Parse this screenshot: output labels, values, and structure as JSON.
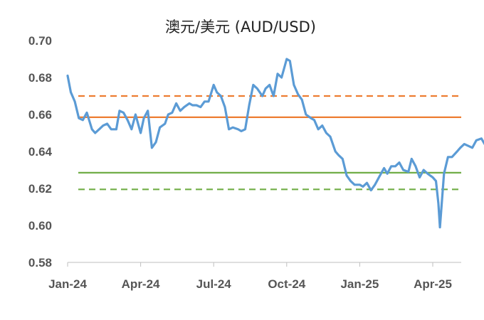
{
  "chart_data": {
    "type": "line",
    "title": "澳元/美元  (AUD/USD)",
    "xlabel": "",
    "ylabel": "",
    "ylim": [
      0.58,
      0.7
    ],
    "yticks": [
      "0.70",
      "0.68",
      "0.66",
      "0.64",
      "0.62",
      "0.60",
      "0.58"
    ],
    "yticks_values": [
      0.7,
      0.68,
      0.66,
      0.64,
      0.62,
      0.6,
      0.58
    ],
    "xticks": [
      "Jan-24",
      "Apr-24",
      "Jul-24",
      "Oct-24",
      "Jan-25",
      "Apr-25"
    ],
    "xticks_months": [
      0,
      3,
      6,
      9,
      12,
      15
    ],
    "xlim_months": [
      0,
      17.8
    ],
    "grid": false,
    "legend": "none",
    "series": [
      {
        "color": "#5B9BD5",
        "x": [
          "2024-01-01",
          "2024-01-05",
          "2024-01-10",
          "2024-01-15",
          "2024-01-20",
          "2024-01-25",
          "2024-02-01",
          "2024-02-05",
          "2024-02-10",
          "2024-02-15",
          "2024-02-20",
          "2024-02-25",
          "2024-03-01",
          "2024-03-05",
          "2024-03-10",
          "2024-03-15",
          "2024-03-20",
          "2024-03-25",
          "2024-04-01",
          "2024-04-05",
          "2024-04-10",
          "2024-04-15",
          "2024-04-20",
          "2024-04-25",
          "2024-05-01",
          "2024-05-05",
          "2024-05-10",
          "2024-05-15",
          "2024-05-20",
          "2024-05-25",
          "2024-06-01",
          "2024-06-05",
          "2024-06-10",
          "2024-06-15",
          "2024-06-20",
          "2024-06-25",
          "2024-07-01",
          "2024-07-05",
          "2024-07-10",
          "2024-07-15",
          "2024-07-20",
          "2024-07-25",
          "2024-08-01",
          "2024-08-05",
          "2024-08-10",
          "2024-08-15",
          "2024-08-20",
          "2024-08-25",
          "2024-09-01",
          "2024-09-05",
          "2024-09-10",
          "2024-09-15",
          "2024-09-20",
          "2024-09-25",
          "2024-10-01",
          "2024-10-05",
          "2024-10-10",
          "2024-10-15",
          "2024-10-20",
          "2024-10-25",
          "2024-11-01",
          "2024-11-05",
          "2024-11-10",
          "2024-11-15",
          "2024-11-20",
          "2024-11-25",
          "2024-12-01",
          "2024-12-05",
          "2024-12-10",
          "2024-12-15",
          "2024-12-20",
          "2024-12-25",
          "2025-01-01",
          "2025-01-05",
          "2025-01-10",
          "2025-01-15",
          "2025-01-20",
          "2025-01-25",
          "2025-02-01",
          "2025-02-05",
          "2025-02-10",
          "2025-02-15",
          "2025-02-20",
          "2025-02-25",
          "2025-03-01",
          "2025-03-05",
          "2025-03-10",
          "2025-03-15",
          "2025-03-20",
          "2025-03-25",
          "2025-04-01",
          "2025-04-05",
          "2025-04-08",
          "2025-04-10",
          "2025-04-15",
          "2025-04-20",
          "2025-04-25",
          "2025-05-01",
          "2025-05-05",
          "2025-05-10",
          "2025-05-15",
          "2025-05-20",
          "2025-05-25",
          "2025-06-01",
          "2025-06-05",
          "2025-06-10",
          "2025-06-15",
          "2025-06-20",
          "2025-06-25"
        ],
        "values": [
          0.681,
          0.672,
          0.667,
          0.658,
          0.657,
          0.661,
          0.652,
          0.65,
          0.652,
          0.654,
          0.655,
          0.652,
          0.652,
          0.662,
          0.661,
          0.657,
          0.652,
          0.66,
          0.65,
          0.658,
          0.662,
          0.642,
          0.645,
          0.653,
          0.655,
          0.66,
          0.661,
          0.666,
          0.662,
          0.664,
          0.666,
          0.665,
          0.665,
          0.664,
          0.667,
          0.667,
          0.676,
          0.672,
          0.67,
          0.664,
          0.652,
          0.653,
          0.652,
          0.651,
          0.652,
          0.665,
          0.676,
          0.674,
          0.67,
          0.674,
          0.676,
          0.67,
          0.682,
          0.68,
          0.69,
          0.689,
          0.676,
          0.671,
          0.668,
          0.66,
          0.658,
          0.657,
          0.652,
          0.654,
          0.65,
          0.648,
          0.64,
          0.638,
          0.636,
          0.627,
          0.624,
          0.622,
          0.622,
          0.621,
          0.623,
          0.619,
          0.622,
          0.626,
          0.631,
          0.628,
          0.632,
          0.632,
          0.634,
          0.63,
          0.629,
          0.636,
          0.632,
          0.626,
          0.63,
          0.628,
          0.626,
          0.624,
          0.612,
          0.599,
          0.628,
          0.637,
          0.637,
          0.64,
          0.642,
          0.644,
          0.643,
          0.642,
          0.646,
          0.647,
          0.644,
          0.646,
          0.648,
          0.646,
          0.645
        ]
      }
    ],
    "reference_lines": [
      {
        "value": 0.67,
        "color": "#ED7D31",
        "style": "dashed"
      },
      {
        "value": 0.6585,
        "color": "#ED7D31",
        "style": "solid"
      },
      {
        "value": 0.6285,
        "color": "#70AD47",
        "style": "solid"
      },
      {
        "value": 0.6195,
        "color": "#70AD47",
        "style": "dashed"
      }
    ]
  }
}
